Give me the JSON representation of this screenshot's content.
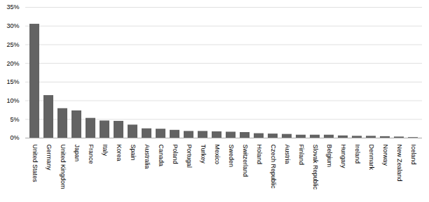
{
  "chart_data": {
    "type": "bar",
    "categories": [
      "United States",
      "Germany",
      "United Kingdom",
      "Japan",
      "France",
      "Italy",
      "Korea",
      "Spain",
      "Australia",
      "Canada",
      "Poland",
      "Portugal",
      "Turkey",
      "Mexico",
      "Sweden",
      "Switzerland",
      "Holand",
      "Czech Republic",
      "Austria",
      "Finland",
      "Slovak Republic",
      "Belgium",
      "Hungary",
      "Ireland",
      "Denmark",
      "Norway",
      "New Zealand",
      "Iceland"
    ],
    "values": [
      30.5,
      11.4,
      7.9,
      7.3,
      5.3,
      4.6,
      4.5,
      3.5,
      2.5,
      2.4,
      2.1,
      1.8,
      1.8,
      1.7,
      1.6,
      1.5,
      1.2,
      1.1,
      1.0,
      0.8,
      0.8,
      0.8,
      0.6,
      0.5,
      0.5,
      0.4,
      0.3,
      0.15
    ],
    "color": "#636363",
    "ylim": [
      0,
      35
    ],
    "yticks": [
      {
        "value": 0,
        "label": "0%"
      },
      {
        "value": 5,
        "label": "5%"
      },
      {
        "value": 10,
        "label": "10%"
      },
      {
        "value": 15,
        "label": "15%"
      },
      {
        "value": 20,
        "label": "20%"
      },
      {
        "value": 25,
        "label": "25%"
      },
      {
        "value": 30,
        "label": "30%"
      },
      {
        "value": 35,
        "label": "35%"
      }
    ],
    "grid": true
  }
}
